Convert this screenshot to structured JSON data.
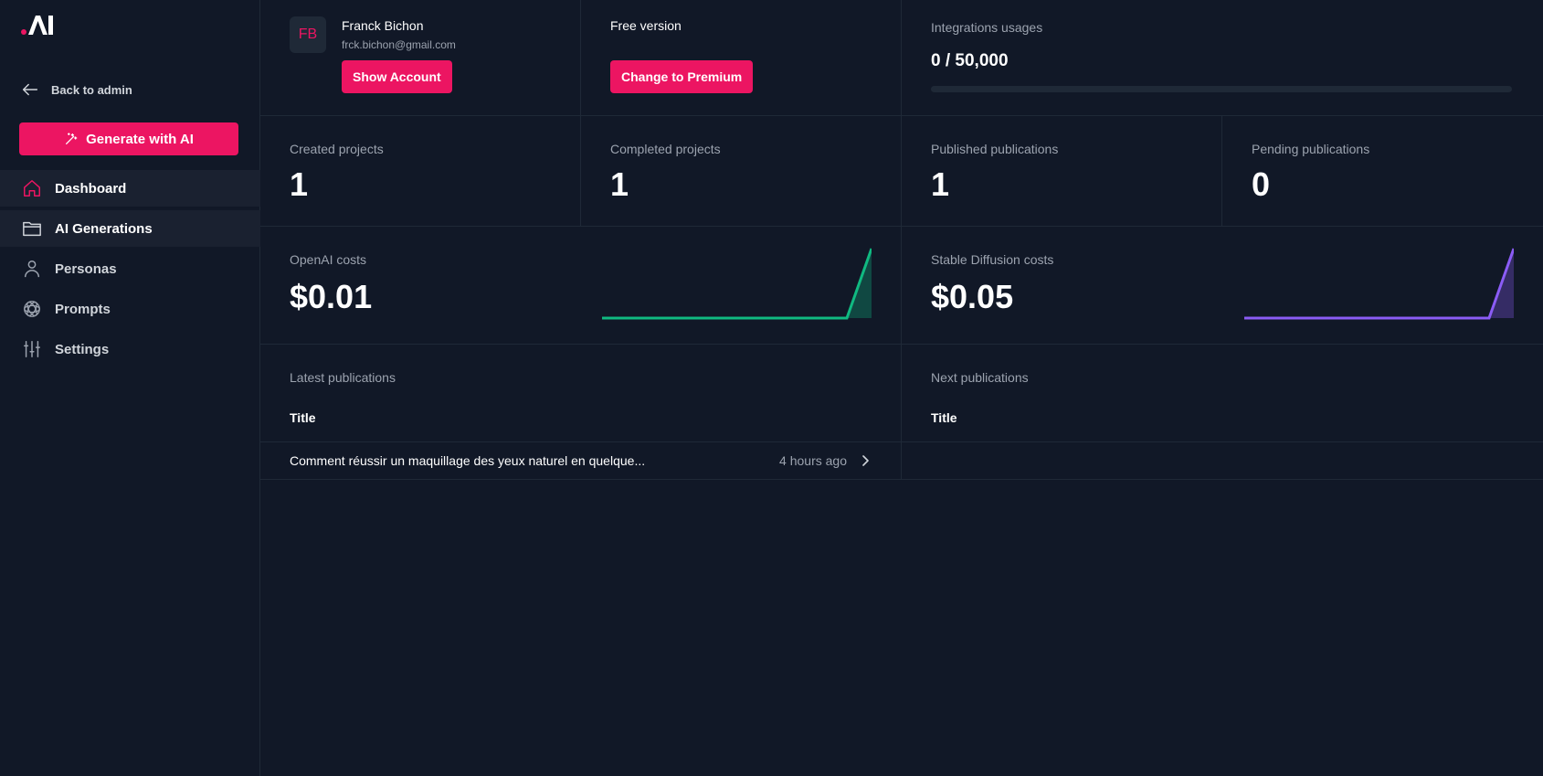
{
  "sidebar": {
    "back_label": "Back to admin",
    "generate_label": "Generate with AI",
    "items": [
      {
        "label": "Dashboard",
        "icon": "home-icon"
      },
      {
        "label": "AI Generations",
        "icon": "folder-icon"
      },
      {
        "label": "Personas",
        "icon": "user-icon"
      },
      {
        "label": "Prompts",
        "icon": "openai-icon"
      },
      {
        "label": "Settings",
        "icon": "sliders-icon"
      }
    ]
  },
  "account": {
    "initials": "FB",
    "name": "Franck Bichon",
    "email": "frck.bichon@gmail.com",
    "show_account_label": "Show Account"
  },
  "plan": {
    "label": "Free version",
    "upgrade_label": "Change to Premium"
  },
  "integrations": {
    "label": "Integrations usages",
    "value": "0 / 50,000",
    "progress": 0
  },
  "stats": [
    {
      "label": "Created projects",
      "value": "1"
    },
    {
      "label": "Completed projects",
      "value": "1"
    },
    {
      "label": "Published publications",
      "value": "1"
    },
    {
      "label": "Pending publications",
      "value": "0"
    }
  ],
  "costs": [
    {
      "label": "OpenAI costs",
      "value": "$0.01",
      "color": "#10b981"
    },
    {
      "label": "Stable Diffusion costs",
      "value": "$0.05",
      "color": "#8b5cf6"
    }
  ],
  "latest": {
    "title": "Latest publications",
    "column": "Title",
    "rows": [
      {
        "title": "Comment réussir un maquillage des yeux naturel en quelque...",
        "time": "4 hours ago"
      }
    ]
  },
  "next": {
    "title": "Next publications",
    "column": "Title"
  },
  "colors": {
    "accent": "#ec1562",
    "background": "#111827",
    "border": "#1f2937"
  }
}
